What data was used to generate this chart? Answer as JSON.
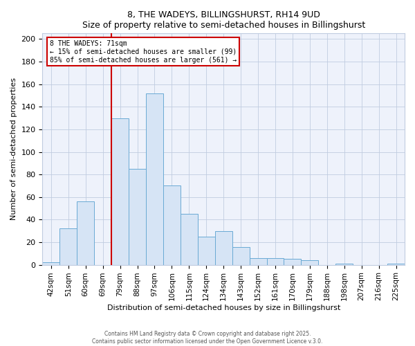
{
  "title": "8, THE WADEYS, BILLINGSHURST, RH14 9UD",
  "subtitle": "Size of property relative to semi-detached houses in Billingshurst",
  "xlabel": "Distribution of semi-detached houses by size in Billingshurst",
  "ylabel": "Number of semi-detached properties",
  "property_label": "8 THE WADEYS: 71sqm",
  "pct_smaller": 15,
  "count_smaller": 99,
  "pct_larger": 85,
  "count_larger": 561,
  "bar_color": "#d6e4f5",
  "bar_edge_color": "#6aaad4",
  "vline_color": "#cc0000",
  "annotation_box_color": "#cc0000",
  "background_color": "#eef2fb",
  "grid_color": "#c0cce0",
  "categories": [
    "42sqm",
    "51sqm",
    "60sqm",
    "69sqm",
    "79sqm",
    "88sqm",
    "97sqm",
    "106sqm",
    "115sqm",
    "124sqm",
    "134sqm",
    "143sqm",
    "152sqm",
    "161sqm",
    "170sqm",
    "179sqm",
    "188sqm",
    "198sqm",
    "207sqm",
    "216sqm",
    "225sqm"
  ],
  "values": [
    2,
    32,
    56,
    0,
    130,
    85,
    152,
    70,
    45,
    25,
    30,
    16,
    6,
    6,
    5,
    4,
    0,
    1,
    0,
    0,
    1
  ],
  "ylim": [
    0,
    205
  ],
  "yticks": [
    0,
    20,
    40,
    60,
    80,
    100,
    120,
    140,
    160,
    180,
    200
  ],
  "footnote1": "Contains HM Land Registry data © Crown copyright and database right 2025.",
  "footnote2": "Contains public sector information licensed under the Open Government Licence v.3.0."
}
